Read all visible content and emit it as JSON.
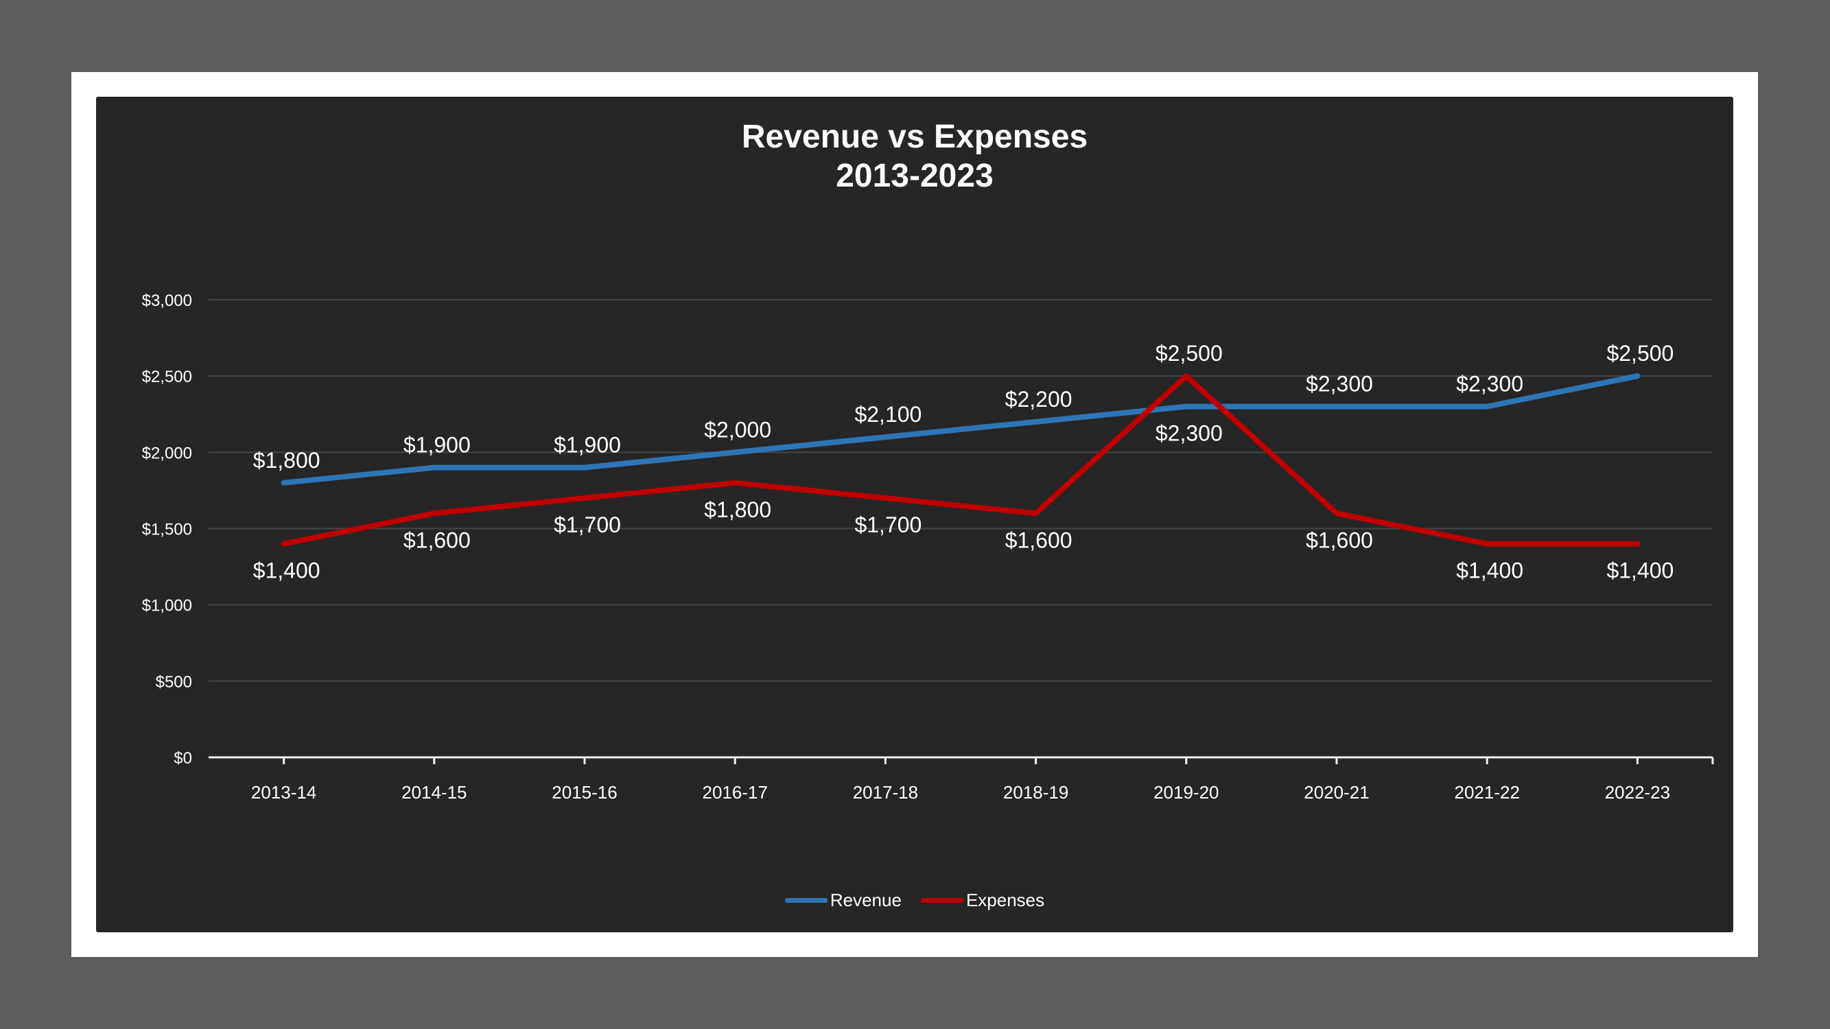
{
  "colors": {
    "revenue": "#2e75b6",
    "expenses": "#c00000",
    "background": "#262626",
    "grid": "#464646",
    "text": "#ffffff"
  },
  "chart_data": {
    "type": "line",
    "title": [
      "Revenue vs Expenses",
      "2013-2023"
    ],
    "categories": [
      "2013-14",
      "2014-15",
      "2015-16",
      "2016-17",
      "2017-18",
      "2018-19",
      "2019-20",
      "2020-21",
      "2021-22",
      "2022-23"
    ],
    "series": [
      {
        "name": "Revenue",
        "values": [
          1800,
          1900,
          1900,
          2000,
          2100,
          2200,
          2300,
          2300,
          2300,
          2500
        ],
        "labels": [
          "$1,800",
          "$1,900",
          "$1,900",
          "$2,000",
          "$2,100",
          "$2,200",
          "$2,300",
          "$2,300",
          "$2,300",
          "$2,500"
        ]
      },
      {
        "name": "Expenses",
        "values": [
          1400,
          1600,
          1700,
          1800,
          1700,
          1600,
          2500,
          1600,
          1400,
          1400
        ],
        "labels": [
          "$1,400",
          "$1,600",
          "$1,700",
          "$1,800",
          "$1,700",
          "$1,600",
          "$2,500",
          "$1,600",
          "$1,400",
          "$1,400"
        ]
      }
    ],
    "ylim": [
      0,
      3000
    ],
    "yticks": [
      0,
      500,
      1000,
      1500,
      2000,
      2500,
      3000
    ],
    "ytick_labels": [
      "$0",
      "$500",
      "$1,000",
      "$1,500",
      "$2,000",
      "$2,500",
      "$3,000"
    ],
    "grid": true,
    "legend": "bottom-center"
  }
}
